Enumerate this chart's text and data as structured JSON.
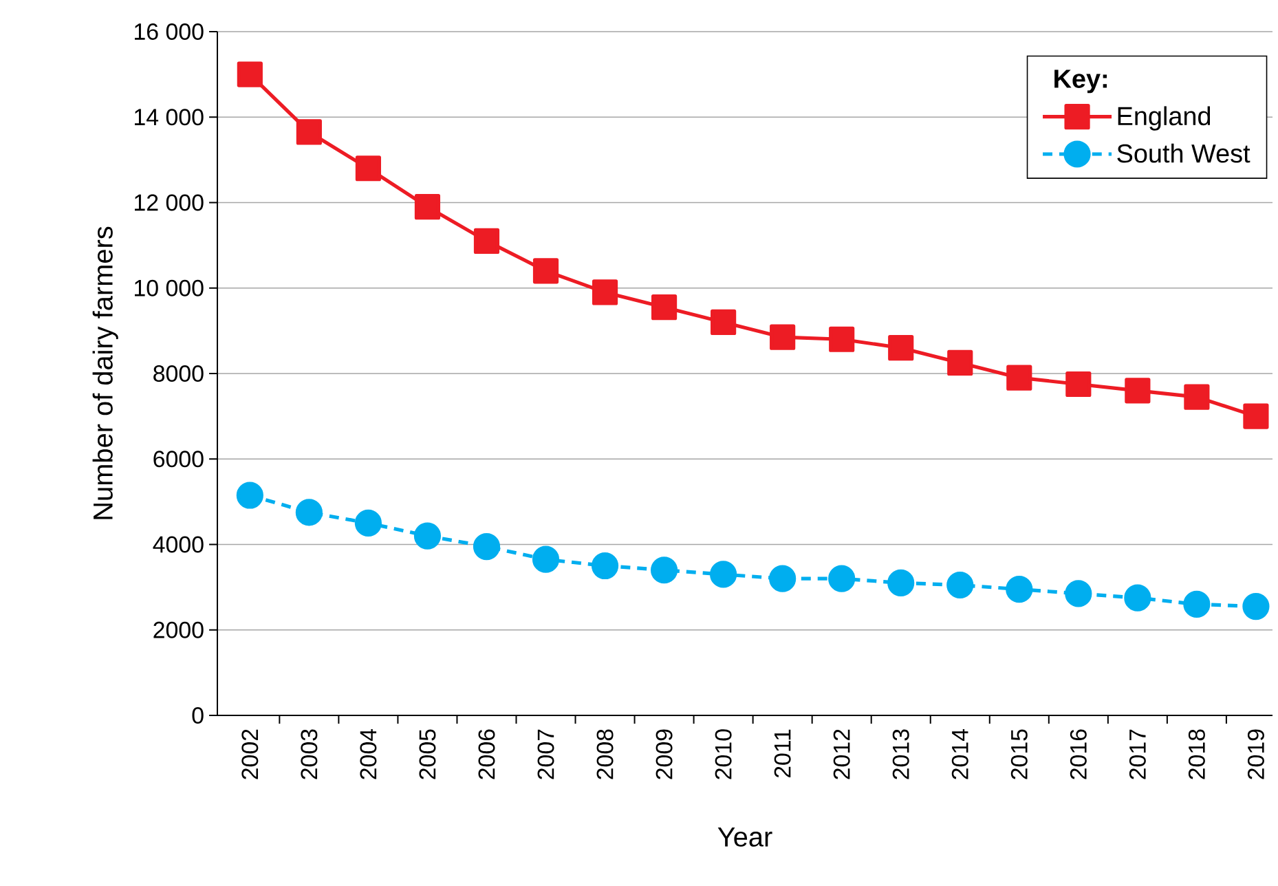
{
  "chart_data": {
    "type": "line",
    "xlabel": "Year",
    "ylabel": "Number of dairy farmers",
    "legend_title": "Key:",
    "categories": [
      "2002",
      "2003",
      "2004",
      "2005",
      "2006",
      "2007",
      "2008",
      "2009",
      "2010",
      "2011",
      "2012",
      "2013",
      "2014",
      "2015",
      "2016",
      "2017",
      "2018",
      "2019"
    ],
    "series": [
      {
        "name": "England",
        "color": "#ed1c24",
        "marker": "square",
        "line_style": "solid",
        "values": [
          15000,
          13650,
          12800,
          11900,
          11100,
          10400,
          9900,
          9550,
          9200,
          8850,
          8800,
          8600,
          8250,
          7900,
          7750,
          7600,
          7450,
          7000
        ]
      },
      {
        "name": "South West",
        "color": "#00aeef",
        "marker": "circle",
        "line_style": "dashed",
        "values": [
          5150,
          4750,
          4500,
          4200,
          3950,
          3650,
          3500,
          3400,
          3300,
          3200,
          3200,
          3100,
          3050,
          2950,
          2850,
          2750,
          2600,
          2550
        ]
      }
    ],
    "ylim": [
      0,
      16000
    ],
    "yticks": [
      0,
      2000,
      4000,
      6000,
      8000,
      {
        "value": 10000,
        "label": "10 000"
      },
      {
        "value": 12000,
        "label": "12 000"
      },
      {
        "value": 14000,
        "label": "14 000"
      },
      {
        "value": 16000,
        "label": "16 000"
      }
    ],
    "grid": "y",
    "legend": "top right"
  }
}
